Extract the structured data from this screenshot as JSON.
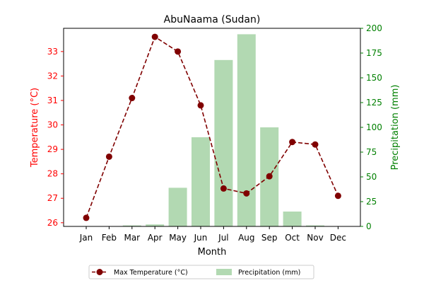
{
  "chart_data": {
    "type": "bar+line",
    "title": "AbuNaama (Sudan)",
    "xlabel": "Month",
    "categories": [
      "Jan",
      "Feb",
      "Mar",
      "Apr",
      "May",
      "Jun",
      "Jul",
      "Aug",
      "Sep",
      "Oct",
      "Nov",
      "Dec"
    ],
    "left_axis": {
      "label": "Temperature (°C)",
      "color": "#ff0000",
      "ylim": [
        25.85,
        33.95
      ],
      "ticks": [
        "26",
        "27",
        "28",
        "29",
        "30",
        "31",
        "32",
        "33"
      ]
    },
    "right_axis": {
      "label": "Precipitation (mm)",
      "color": "#008000",
      "ylim": [
        0,
        200
      ],
      "ticks": [
        "0",
        "25",
        "50",
        "75",
        "100",
        "125",
        "150",
        "175",
        "200"
      ]
    },
    "series": [
      {
        "name": "Max Temperature (°C)",
        "type": "line",
        "axis": "left",
        "color": "#800000",
        "values": [
          26.2,
          28.7,
          31.1,
          33.6,
          33.0,
          30.8,
          27.4,
          27.2,
          27.9,
          29.3,
          29.2,
          27.1
        ]
      },
      {
        "name": "Precipitation (mm)",
        "type": "bar",
        "axis": "right",
        "color": "#b2d9b2",
        "values": [
          0,
          0,
          1,
          2,
          39,
          90,
          168,
          194,
          100,
          15,
          1,
          0
        ]
      }
    ],
    "legend_position": "bottom-center",
    "grid": false
  }
}
